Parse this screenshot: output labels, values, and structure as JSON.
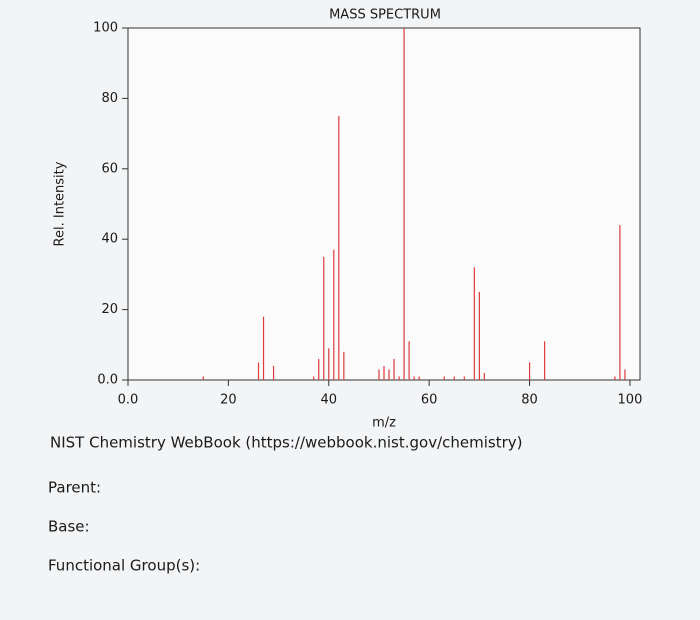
{
  "chart_data": {
    "type": "stem",
    "title": "MASS SPECTRUM",
    "x_label": "m/z",
    "y_label": "Rel. Intensity",
    "x": [
      15,
      26,
      27,
      29,
      37,
      38,
      39,
      40,
      41,
      42,
      43,
      50,
      51,
      52,
      53,
      54,
      55,
      56,
      57,
      58,
      63,
      65,
      67,
      69,
      70,
      71,
      80,
      83,
      97,
      98,
      99
    ],
    "values": [
      1,
      5,
      18,
      4,
      1,
      6,
      35,
      9,
      37,
      75,
      8,
      3,
      4,
      3,
      6,
      1,
      100,
      11,
      1,
      1,
      1,
      1,
      1,
      32,
      25,
      2,
      5,
      11,
      1,
      44,
      3
    ],
    "color": "#e03a3a",
    "xlim": [
      0,
      102
    ],
    "xticks": [
      {
        "value": 0,
        "label": "0.0"
      },
      20,
      40,
      60,
      80,
      100
    ],
    "ylim": [
      0,
      100
    ],
    "yticks": [
      {
        "value": 0,
        "label": "0.0"
      },
      20,
      40,
      60,
      80,
      100
    ]
  },
  "source": "NIST Chemistry WebBook (https://webbook.nist.gov/chemistry)",
  "questions": [
    "Parent:",
    "Base:",
    "Functional Group(s):"
  ]
}
